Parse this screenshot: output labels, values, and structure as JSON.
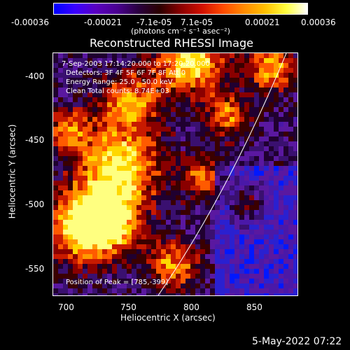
{
  "colorbar": {
    "tick_labels": [
      "-0.00036",
      "-0.00021",
      "-7.1e-05",
      "7.1e-05",
      "0.00021",
      "0.00036"
    ],
    "units_label": "(photons cm⁻² s⁻¹ asec⁻²)",
    "colors": [
      "#0000ff",
      "#3a00ff",
      "#5a00c0",
      "#4a0090",
      "#2a0040",
      "#2b0000",
      "#8a0000",
      "#d01000",
      "#ff4a00",
      "#ff8a00",
      "#ffc000",
      "#ffff40",
      "#ffffff"
    ]
  },
  "title": "Reconstructed RHESSI Image",
  "info": {
    "time": "7-Sep-2003 17:14:20.000 to 17:20:20.000",
    "detectors": "Detectors: 3F 4F 5F 6F 7F 8F   Att 0",
    "energy": "Energy Range: 25.0 - 50.0 keV",
    "method": "Clean      Total counts: 8.74E+03"
  },
  "peak": "Position of Peak = [785,-399]",
  "axes": {
    "xlabel": "Heliocentric X (arcsec)",
    "ylabel": "Heliocentric Y (arcsec)",
    "x_ticks": [
      "700",
      "750",
      "800",
      "850"
    ],
    "y_ticks": [
      "-400",
      "-450",
      "-500",
      "-550"
    ],
    "xlim": [
      685,
      880
    ],
    "ylim": [
      -572,
      -379
    ]
  },
  "timestamp": "5-May-2022 07:22"
}
